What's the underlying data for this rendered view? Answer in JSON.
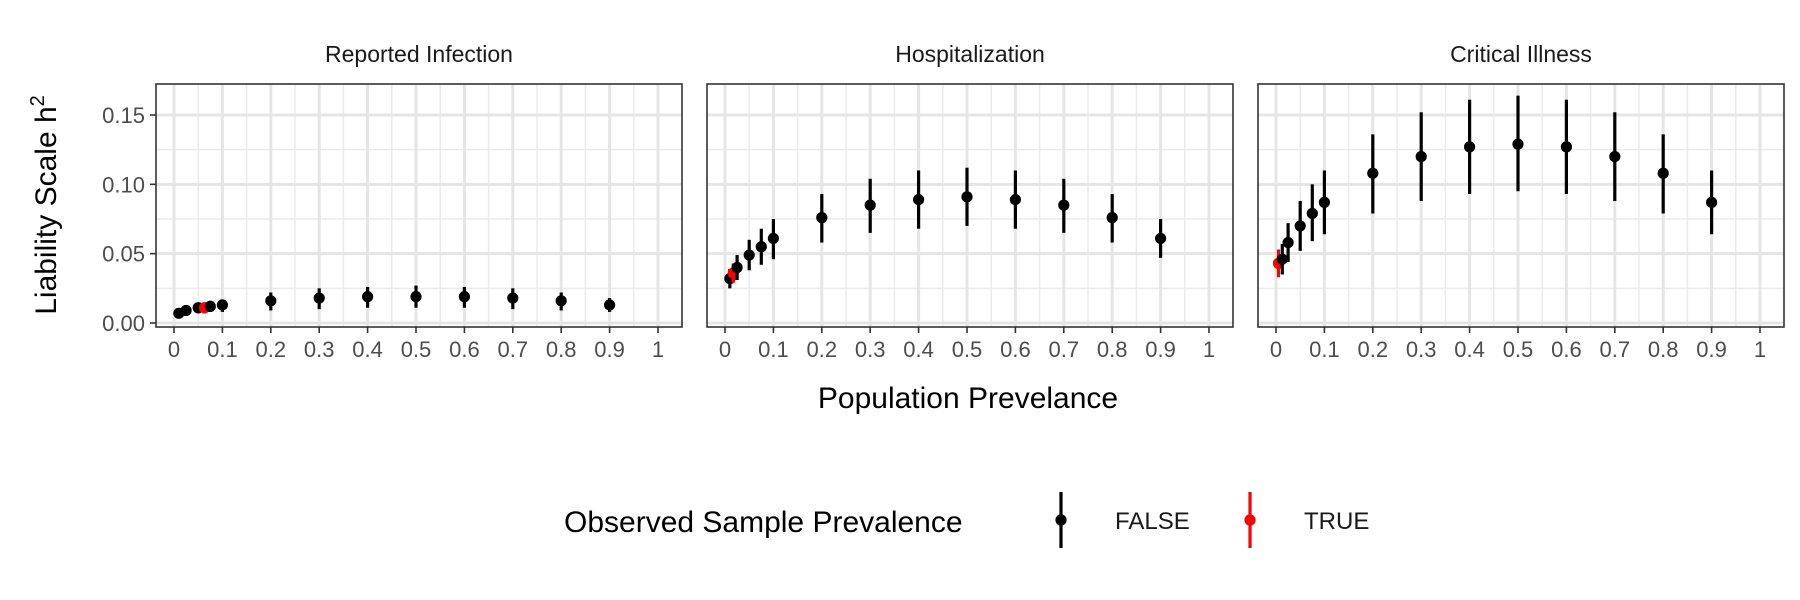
{
  "chart_data": {
    "type": "scatter",
    "style": "point-with-errorbars, faceted",
    "grid": true,
    "xlabel": "Population Prevelance",
    "ylabel": "Liability Scale h",
    "ylabel_superscript": "2",
    "xlim": [
      0,
      1
    ],
    "ylim": [
      0,
      0.165
    ],
    "x_ticks": [
      0,
      0.1,
      0.2,
      0.3,
      0.4,
      0.5,
      0.6,
      0.7,
      0.8,
      0.9,
      1
    ],
    "x_tick_labels": [
      "0",
      "0.1",
      "0.2",
      "0.3",
      "0.4",
      "0.5",
      "0.6",
      "0.7",
      "0.8",
      "0.9",
      "1"
    ],
    "y_ticks": [
      0,
      0.05,
      0.1,
      0.15
    ],
    "y_tick_labels": [
      "0.00",
      "0.05",
      "0.10",
      "0.15"
    ],
    "legend": {
      "title": "Observed Sample Prevalence",
      "position": "bottom",
      "entries": [
        {
          "label": "FALSE",
          "color": "#000000"
        },
        {
          "label": "TRUE",
          "color": "#ff0000"
        }
      ]
    },
    "panels": [
      {
        "title": "Reported Infection",
        "points": [
          {
            "x": 0.01,
            "y": 0.007,
            "lo": 0.005,
            "hi": 0.009,
            "observed": false
          },
          {
            "x": 0.025,
            "y": 0.009,
            "lo": 0.006,
            "hi": 0.011,
            "observed": false
          },
          {
            "x": 0.05,
            "y": 0.011,
            "lo": 0.007,
            "hi": 0.014,
            "observed": false
          },
          {
            "x": 0.063,
            "y": 0.011,
            "lo": 0.007,
            "hi": 0.015,
            "observed": true
          },
          {
            "x": 0.075,
            "y": 0.012,
            "lo": 0.008,
            "hi": 0.016,
            "observed": false
          },
          {
            "x": 0.1,
            "y": 0.013,
            "lo": 0.008,
            "hi": 0.017,
            "observed": false
          },
          {
            "x": 0.2,
            "y": 0.016,
            "lo": 0.009,
            "hi": 0.022,
            "observed": false
          },
          {
            "x": 0.3,
            "y": 0.018,
            "lo": 0.01,
            "hi": 0.025,
            "observed": false
          },
          {
            "x": 0.4,
            "y": 0.019,
            "lo": 0.011,
            "hi": 0.026,
            "observed": false
          },
          {
            "x": 0.5,
            "y": 0.019,
            "lo": 0.011,
            "hi": 0.027,
            "observed": false
          },
          {
            "x": 0.6,
            "y": 0.019,
            "lo": 0.011,
            "hi": 0.026,
            "observed": false
          },
          {
            "x": 0.7,
            "y": 0.018,
            "lo": 0.01,
            "hi": 0.025,
            "observed": false
          },
          {
            "x": 0.8,
            "y": 0.016,
            "lo": 0.009,
            "hi": 0.022,
            "observed": false
          },
          {
            "x": 0.9,
            "y": 0.013,
            "lo": 0.008,
            "hi": 0.018,
            "observed": false
          }
        ]
      },
      {
        "title": "Hospitalization",
        "points": [
          {
            "x": 0.01,
            "y": 0.032,
            "lo": 0.025,
            "hi": 0.039,
            "observed": false
          },
          {
            "x": 0.017,
            "y": 0.036,
            "lo": 0.029,
            "hi": 0.043,
            "observed": true
          },
          {
            "x": 0.025,
            "y": 0.04,
            "lo": 0.031,
            "hi": 0.049,
            "observed": false
          },
          {
            "x": 0.05,
            "y": 0.049,
            "lo": 0.038,
            "hi": 0.06,
            "observed": false
          },
          {
            "x": 0.075,
            "y": 0.055,
            "lo": 0.042,
            "hi": 0.068,
            "observed": false
          },
          {
            "x": 0.1,
            "y": 0.061,
            "lo": 0.046,
            "hi": 0.075,
            "observed": false
          },
          {
            "x": 0.2,
            "y": 0.076,
            "lo": 0.058,
            "hi": 0.093,
            "observed": false
          },
          {
            "x": 0.3,
            "y": 0.085,
            "lo": 0.065,
            "hi": 0.104,
            "observed": false
          },
          {
            "x": 0.4,
            "y": 0.089,
            "lo": 0.068,
            "hi": 0.11,
            "observed": false
          },
          {
            "x": 0.5,
            "y": 0.091,
            "lo": 0.07,
            "hi": 0.112,
            "observed": false
          },
          {
            "x": 0.6,
            "y": 0.089,
            "lo": 0.068,
            "hi": 0.11,
            "observed": false
          },
          {
            "x": 0.7,
            "y": 0.085,
            "lo": 0.065,
            "hi": 0.104,
            "observed": false
          },
          {
            "x": 0.8,
            "y": 0.076,
            "lo": 0.058,
            "hi": 0.093,
            "observed": false
          },
          {
            "x": 0.9,
            "y": 0.061,
            "lo": 0.047,
            "hi": 0.075,
            "observed": false
          }
        ]
      },
      {
        "title": "Critical Illness",
        "points": [
          {
            "x": 0.005,
            "y": 0.043,
            "lo": 0.033,
            "hi": 0.053,
            "observed": true
          },
          {
            "x": 0.013,
            "y": 0.046,
            "lo": 0.035,
            "hi": 0.057,
            "observed": false
          },
          {
            "x": 0.025,
            "y": 0.058,
            "lo": 0.044,
            "hi": 0.072,
            "observed": false
          },
          {
            "x": 0.05,
            "y": 0.07,
            "lo": 0.052,
            "hi": 0.088,
            "observed": false
          },
          {
            "x": 0.075,
            "y": 0.079,
            "lo": 0.059,
            "hi": 0.1,
            "observed": false
          },
          {
            "x": 0.1,
            "y": 0.087,
            "lo": 0.064,
            "hi": 0.11,
            "observed": false
          },
          {
            "x": 0.2,
            "y": 0.108,
            "lo": 0.079,
            "hi": 0.136,
            "observed": false
          },
          {
            "x": 0.3,
            "y": 0.12,
            "lo": 0.088,
            "hi": 0.152,
            "observed": false
          },
          {
            "x": 0.4,
            "y": 0.127,
            "lo": 0.093,
            "hi": 0.161,
            "observed": false
          },
          {
            "x": 0.5,
            "y": 0.129,
            "lo": 0.095,
            "hi": 0.164,
            "observed": false
          },
          {
            "x": 0.6,
            "y": 0.127,
            "lo": 0.093,
            "hi": 0.161,
            "observed": false
          },
          {
            "x": 0.7,
            "y": 0.12,
            "lo": 0.088,
            "hi": 0.152,
            "observed": false
          },
          {
            "x": 0.8,
            "y": 0.108,
            "lo": 0.079,
            "hi": 0.136,
            "observed": false
          },
          {
            "x": 0.9,
            "y": 0.087,
            "lo": 0.064,
            "hi": 0.11,
            "observed": false
          }
        ]
      }
    ]
  }
}
